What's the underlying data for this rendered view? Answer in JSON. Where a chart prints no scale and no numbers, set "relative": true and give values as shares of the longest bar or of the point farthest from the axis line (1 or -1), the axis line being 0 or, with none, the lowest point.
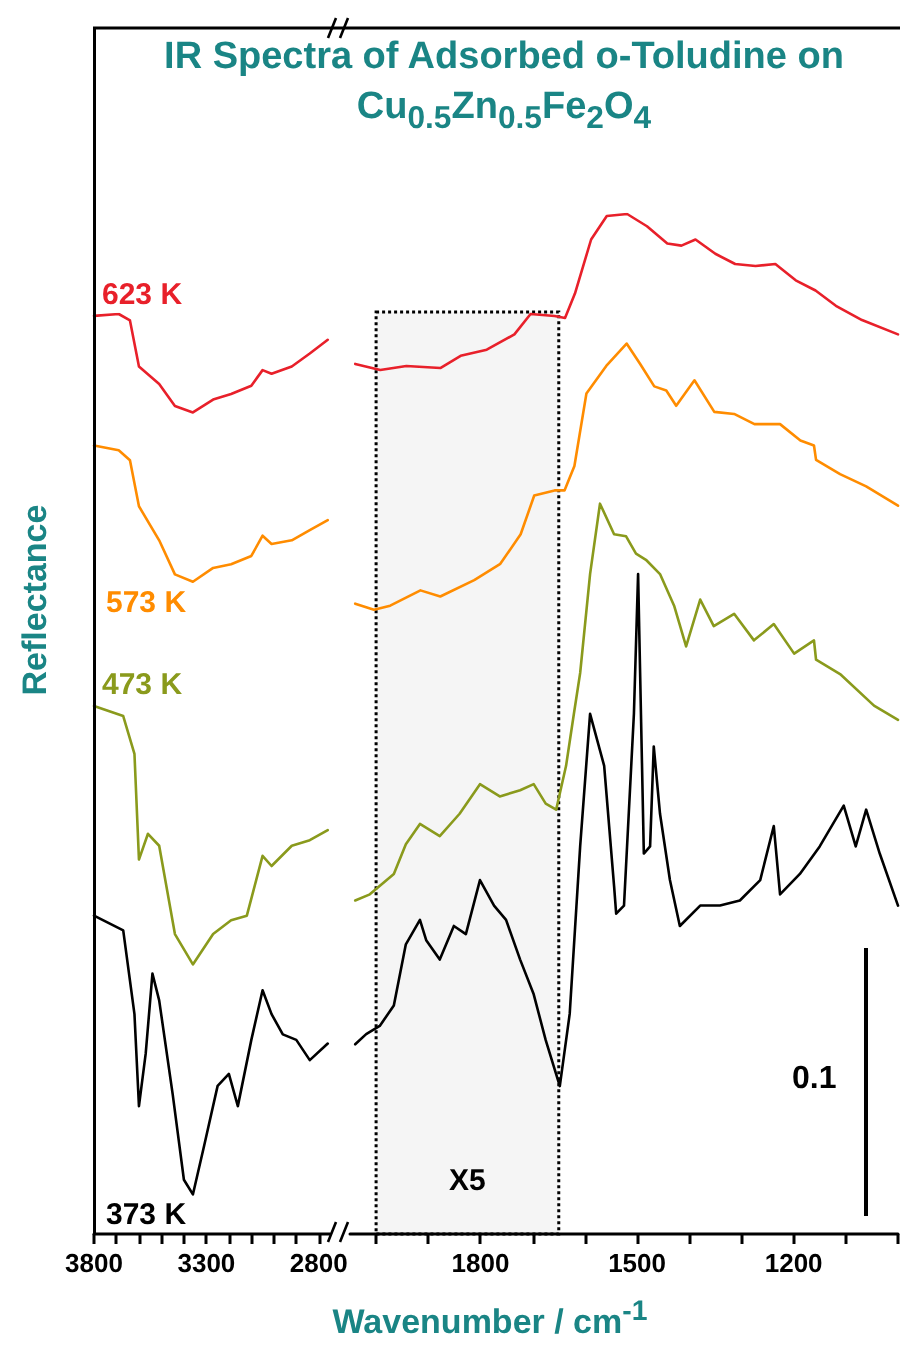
{
  "chart_data": [
    {
      "type": "line",
      "relative": true,
      "ylabel": "Reflectance",
      "xlim": [
        3800,
        2750
      ],
      "xticks": [
        3800,
        {
          "value": 3700,
          "label": null
        },
        {
          "value": 3600,
          "label": null
        },
        {
          "value": 3500,
          "label": null
        },
        {
          "value": 3400,
          "label": null
        },
        3300,
        {
          "value": 3200,
          "label": null
        },
        {
          "value": 3100,
          "label": null
        },
        {
          "value": 3000,
          "label": null
        },
        {
          "value": 2900,
          "label": null
        },
        2800
      ],
      "tick_labels": "x",
      "grid": false,
      "legend": false,
      "marker": "none",
      "line_style": "solid",
      "series": [
        {
          "name": "623 K",
          "color": "#e8202a",
          "x": [
            3800,
            3690,
            3640,
            3600,
            3510,
            3440,
            3360,
            3270,
            3190,
            3100,
            3050,
            3010,
            2920,
            2840,
            2760
          ],
          "values": [
            0.998,
            1.0,
            0.993,
            0.943,
            0.924,
            0.9,
            0.893,
            0.907,
            0.913,
            0.922,
            0.939,
            0.935,
            0.943,
            0.957,
            0.972
          ]
        },
        {
          "name": "573 K",
          "color": "#ff8c00",
          "x": [
            3800,
            3690,
            3640,
            3600,
            3510,
            3440,
            3360,
            3270,
            3190,
            3100,
            3050,
            3010,
            2920,
            2840,
            2760
          ],
          "values": [
            0.857,
            0.852,
            0.841,
            0.791,
            0.754,
            0.717,
            0.709,
            0.724,
            0.728,
            0.737,
            0.759,
            0.75,
            0.754,
            0.765,
            0.776
          ]
        },
        {
          "name": "473 K",
          "color": "#8a9a1c",
          "x": [
            3800,
            3670,
            3620,
            3600,
            3560,
            3510,
            3440,
            3360,
            3270,
            3190,
            3120,
            3050,
            3010,
            2920,
            2840,
            2760
          ],
          "values": [
            0.574,
            0.563,
            0.522,
            0.407,
            0.435,
            0.422,
            0.326,
            0.293,
            0.326,
            0.341,
            0.346,
            0.411,
            0.4,
            0.422,
            0.428,
            0.439
          ]
        },
        {
          "name": "373 K",
          "color": "#000000",
          "x": [
            3800,
            3670,
            3620,
            3600,
            3570,
            3540,
            3510,
            3450,
            3400,
            3360,
            3310,
            3250,
            3200,
            3160,
            3100,
            3050,
            3010,
            2960,
            2900,
            2840,
            2760
          ],
          "values": [
            0.346,
            0.33,
            0.239,
            0.139,
            0.196,
            0.283,
            0.254,
            0.152,
            0.059,
            0.043,
            0.096,
            0.161,
            0.174,
            0.139,
            0.211,
            0.265,
            0.239,
            0.217,
            0.211,
            0.189,
            0.207
          ]
        }
      ]
    },
    {
      "type": "line",
      "relative": true,
      "title": "IR Spectra of Adsorbed o-Toludine on Cu$_{0.5}$Zn$_{0.5}$Fe$_{2}$O$_{4}$",
      "xlabel": "Wavenumber / cm$^{-1}$",
      "xlim": [
        2050,
        1000
      ],
      "xticks": [
        {
          "value": 2000,
          "label": null
        },
        {
          "value": 1900,
          "label": null
        },
        1800,
        {
          "value": 1700,
          "label": null
        },
        {
          "value": 1600,
          "label": null
        },
        1500,
        {
          "value": 1400,
          "label": null
        },
        {
          "value": 1300,
          "label": null
        },
        1200,
        {
          "value": 1100,
          "label": null
        },
        {
          "value": 1000,
          "label": null
        }
      ],
      "tick_labels": "x",
      "grid": false,
      "legend": false,
      "marker": "none",
      "line_style": "solid",
      "bands": [
        {
          "axis": "x",
          "from": 2000,
          "to": 1650,
          "label": "X5",
          "color": "#000000"
        }
      ],
      "annotations": [
        "0.1"
      ],
      "series": [
        {
          "color": "#e8202a",
          "x": [
            2040,
            1992,
            1942,
            1877,
            1838,
            1788,
            1735,
            1704,
            1658,
            1638,
            1619,
            1588,
            1558,
            1519,
            1481,
            1442,
            1415,
            1388,
            1350,
            1312,
            1273,
            1235,
            1196,
            1158,
            1119,
            1069,
            1000
          ],
          "values": [
            0.853,
            0.847,
            0.851,
            0.849,
            0.861,
            0.867,
            0.882,
            0.902,
            0.9,
            0.898,
            0.922,
            0.975,
            0.998,
            1.0,
            0.988,
            0.971,
            0.969,
            0.975,
            0.961,
            0.951,
            0.949,
            0.951,
            0.935,
            0.925,
            0.91,
            0.896,
            0.882
          ]
        },
        {
          "color": "#ff8c00",
          "x": [
            2040,
            2004,
            1973,
            1915,
            1877,
            1812,
            1762,
            1723,
            1697,
            1658,
            1639,
            1620,
            1597,
            1559,
            1520,
            1494,
            1467,
            1444,
            1425,
            1390,
            1352,
            1314,
            1275,
            1226,
            1187,
            1161,
            1157,
            1111,
            1061,
            1000
          ],
          "values": [
            0.618,
            0.612,
            0.616,
            0.631,
            0.625,
            0.641,
            0.657,
            0.686,
            0.724,
            0.729,
            0.729,
            0.753,
            0.824,
            0.851,
            0.873,
            0.853,
            0.831,
            0.827,
            0.812,
            0.837,
            0.806,
            0.804,
            0.794,
            0.794,
            0.778,
            0.773,
            0.759,
            0.745,
            0.733,
            0.714
          ]
        },
        {
          "color": "#8a9a1c",
          "x": [
            2040,
            2012,
            1966,
            1943,
            1916,
            1878,
            1840,
            1801,
            1763,
            1724,
            1698,
            1675,
            1655,
            1636,
            1621,
            1609,
            1590,
            1571,
            1544,
            1521,
            1502,
            1483,
            1456,
            1429,
            1406,
            1379,
            1353,
            1314,
            1276,
            1238,
            1199,
            1161,
            1157,
            1111,
            1046,
            1000
          ],
          "values": [
            0.327,
            0.333,
            0.353,
            0.382,
            0.402,
            0.39,
            0.412,
            0.441,
            0.429,
            0.435,
            0.441,
            0.422,
            0.416,
            0.459,
            0.51,
            0.55,
            0.647,
            0.716,
            0.686,
            0.684,
            0.667,
            0.661,
            0.647,
            0.616,
            0.576,
            0.622,
            0.596,
            0.608,
            0.582,
            0.598,
            0.569,
            0.582,
            0.563,
            0.549,
            0.518,
            0.504
          ]
        },
        {
          "color": "#000000",
          "x": [
            2040,
            2019,
            1993,
            1966,
            1943,
            1916,
            1904,
            1878,
            1851,
            1828,
            1801,
            1774,
            1751,
            1724,
            1698,
            1675,
            1648,
            1629,
            1609,
            1590,
            1563,
            1544,
            1540,
            1525,
            1506,
            1498,
            1487,
            1475,
            1468,
            1456,
            1437,
            1418,
            1379,
            1341,
            1303,
            1264,
            1238,
            1226,
            1188,
            1150,
            1104,
            1081,
            1061,
            1035,
            1000
          ],
          "values": [
            0.186,
            0.196,
            0.204,
            0.224,
            0.284,
            0.308,
            0.288,
            0.269,
            0.302,
            0.294,
            0.347,
            0.322,
            0.308,
            0.269,
            0.235,
            0.19,
            0.145,
            0.216,
            0.38,
            0.51,
            0.459,
            0.341,
            0.314,
            0.322,
            0.51,
            0.647,
            0.373,
            0.38,
            0.478,
            0.412,
            0.347,
            0.302,
            0.322,
            0.322,
            0.327,
            0.347,
            0.4,
            0.333,
            0.353,
            0.38,
            0.42,
            0.38,
            0.416,
            0.373,
            0.322
          ]
        }
      ]
    }
  ]
}
